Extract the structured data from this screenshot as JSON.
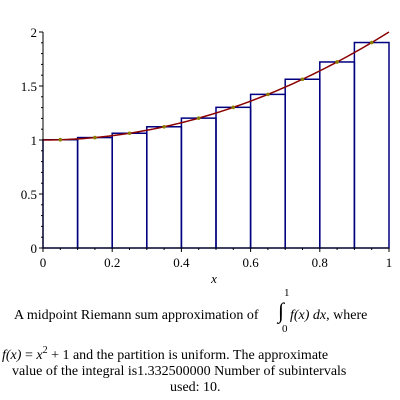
{
  "chart_data": {
    "type": "bar",
    "title": "",
    "xlabel": "x",
    "ylabel": "",
    "xlim": [
      0,
      1
    ],
    "ylim": [
      0,
      2
    ],
    "grid": false,
    "x_ticks": [
      "0",
      "0.2",
      "0.4",
      "0.6",
      "0.8",
      "1"
    ],
    "y_ticks": [
      "0",
      "0.5",
      "1",
      "1.5",
      "2"
    ],
    "intervals": [
      [
        0,
        0.1
      ],
      [
        0.1,
        0.2
      ],
      [
        0.2,
        0.3
      ],
      [
        0.3,
        0.4
      ],
      [
        0.4,
        0.5
      ],
      [
        0.5,
        0.6
      ],
      [
        0.6,
        0.7
      ],
      [
        0.7,
        0.8
      ],
      [
        0.8,
        0.9
      ],
      [
        0.9,
        1.0
      ]
    ],
    "midpoints": [
      0.05,
      0.15,
      0.25,
      0.35,
      0.45,
      0.55,
      0.65,
      0.75,
      0.85,
      0.95
    ],
    "values": [
      1.0025,
      1.0225,
      1.0625,
      1.1225,
      1.2025,
      1.3025,
      1.4225,
      1.5625,
      1.7225,
      1.9025
    ],
    "series": [
      {
        "name": "",
        "kind": "curve",
        "function": "x^2 + 1"
      }
    ],
    "colors": {
      "bars": "#000080",
      "curve": "#8b0000",
      "midpoints": "#8b7d00"
    }
  },
  "caption": {
    "line1_pre": "A midpoint Riemann sum approximation of",
    "integral_upper": "1",
    "integral_lower": "0",
    "integrand": "f(x) dx",
    "line1_post": ", where",
    "fx": "f(x)",
    "eq": " = ",
    "x": "x",
    "exp": "2",
    "line2_rest": " + 1 and the partition is uniform.  The approximate",
    "line3": "value of the integral is1.332500000  Number of subintervals",
    "line4": "used: 10."
  }
}
